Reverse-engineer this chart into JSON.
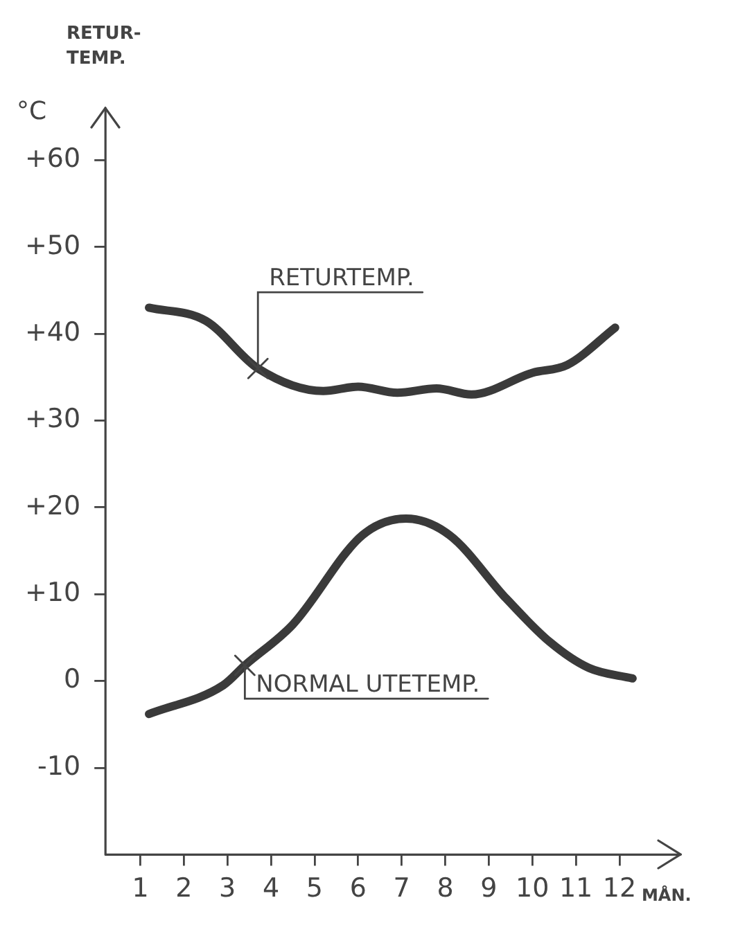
{
  "chart_data": {
    "type": "line",
    "title": "RETUR-\nTEMP.",
    "ylabel": "°C",
    "xlabel": "MÅN.",
    "xlim": [
      0.2,
      13.4
    ],
    "xticks": [
      1,
      2,
      3,
      4,
      5,
      6,
      7,
      8,
      9,
      10,
      11,
      12
    ],
    "ylim": [
      -20,
      66
    ],
    "yticks": [
      {
        "value": 60,
        "label": "+60"
      },
      {
        "value": 50,
        "label": "+50"
      },
      {
        "value": 40,
        "label": "+40"
      },
      {
        "value": 30,
        "label": "+30"
      },
      {
        "value": 20,
        "label": "+20"
      },
      {
        "value": 10,
        "label": "+10"
      },
      0,
      -10
    ],
    "grid": false,
    "legend": false,
    "marker": "none",
    "line_style": "solid",
    "series": [
      {
        "color": "#3a3a3a",
        "x": [
          1.2,
          2.5,
          3.7,
          5.2,
          6.0,
          6.9,
          7.8,
          8.6,
          10.0,
          10.8,
          11.9
        ],
        "values": [
          43,
          41.5,
          36,
          33.4,
          33.9,
          33.2,
          33.7,
          33,
          35.5,
          36.4,
          40.7
        ]
      },
      {
        "color": "#3a3a3a",
        "x": [
          1.2,
          2.9,
          3.4,
          4.5,
          6.1,
          7.1,
          8.1,
          9.4,
          10.4,
          11.3,
          12.3
        ],
        "values": [
          -3.8,
          -0.5,
          1.8,
          6.5,
          16.8,
          18.7,
          16.8,
          9.5,
          4.5,
          1.5,
          0.3
        ]
      }
    ],
    "annotations": [
      {
        "text": "RETURTEMP.",
        "x": 3.7,
        "y": 36
      },
      {
        "text": "NORMAL UTETEMP.",
        "x": 3.4,
        "y": 1.8
      }
    ]
  }
}
